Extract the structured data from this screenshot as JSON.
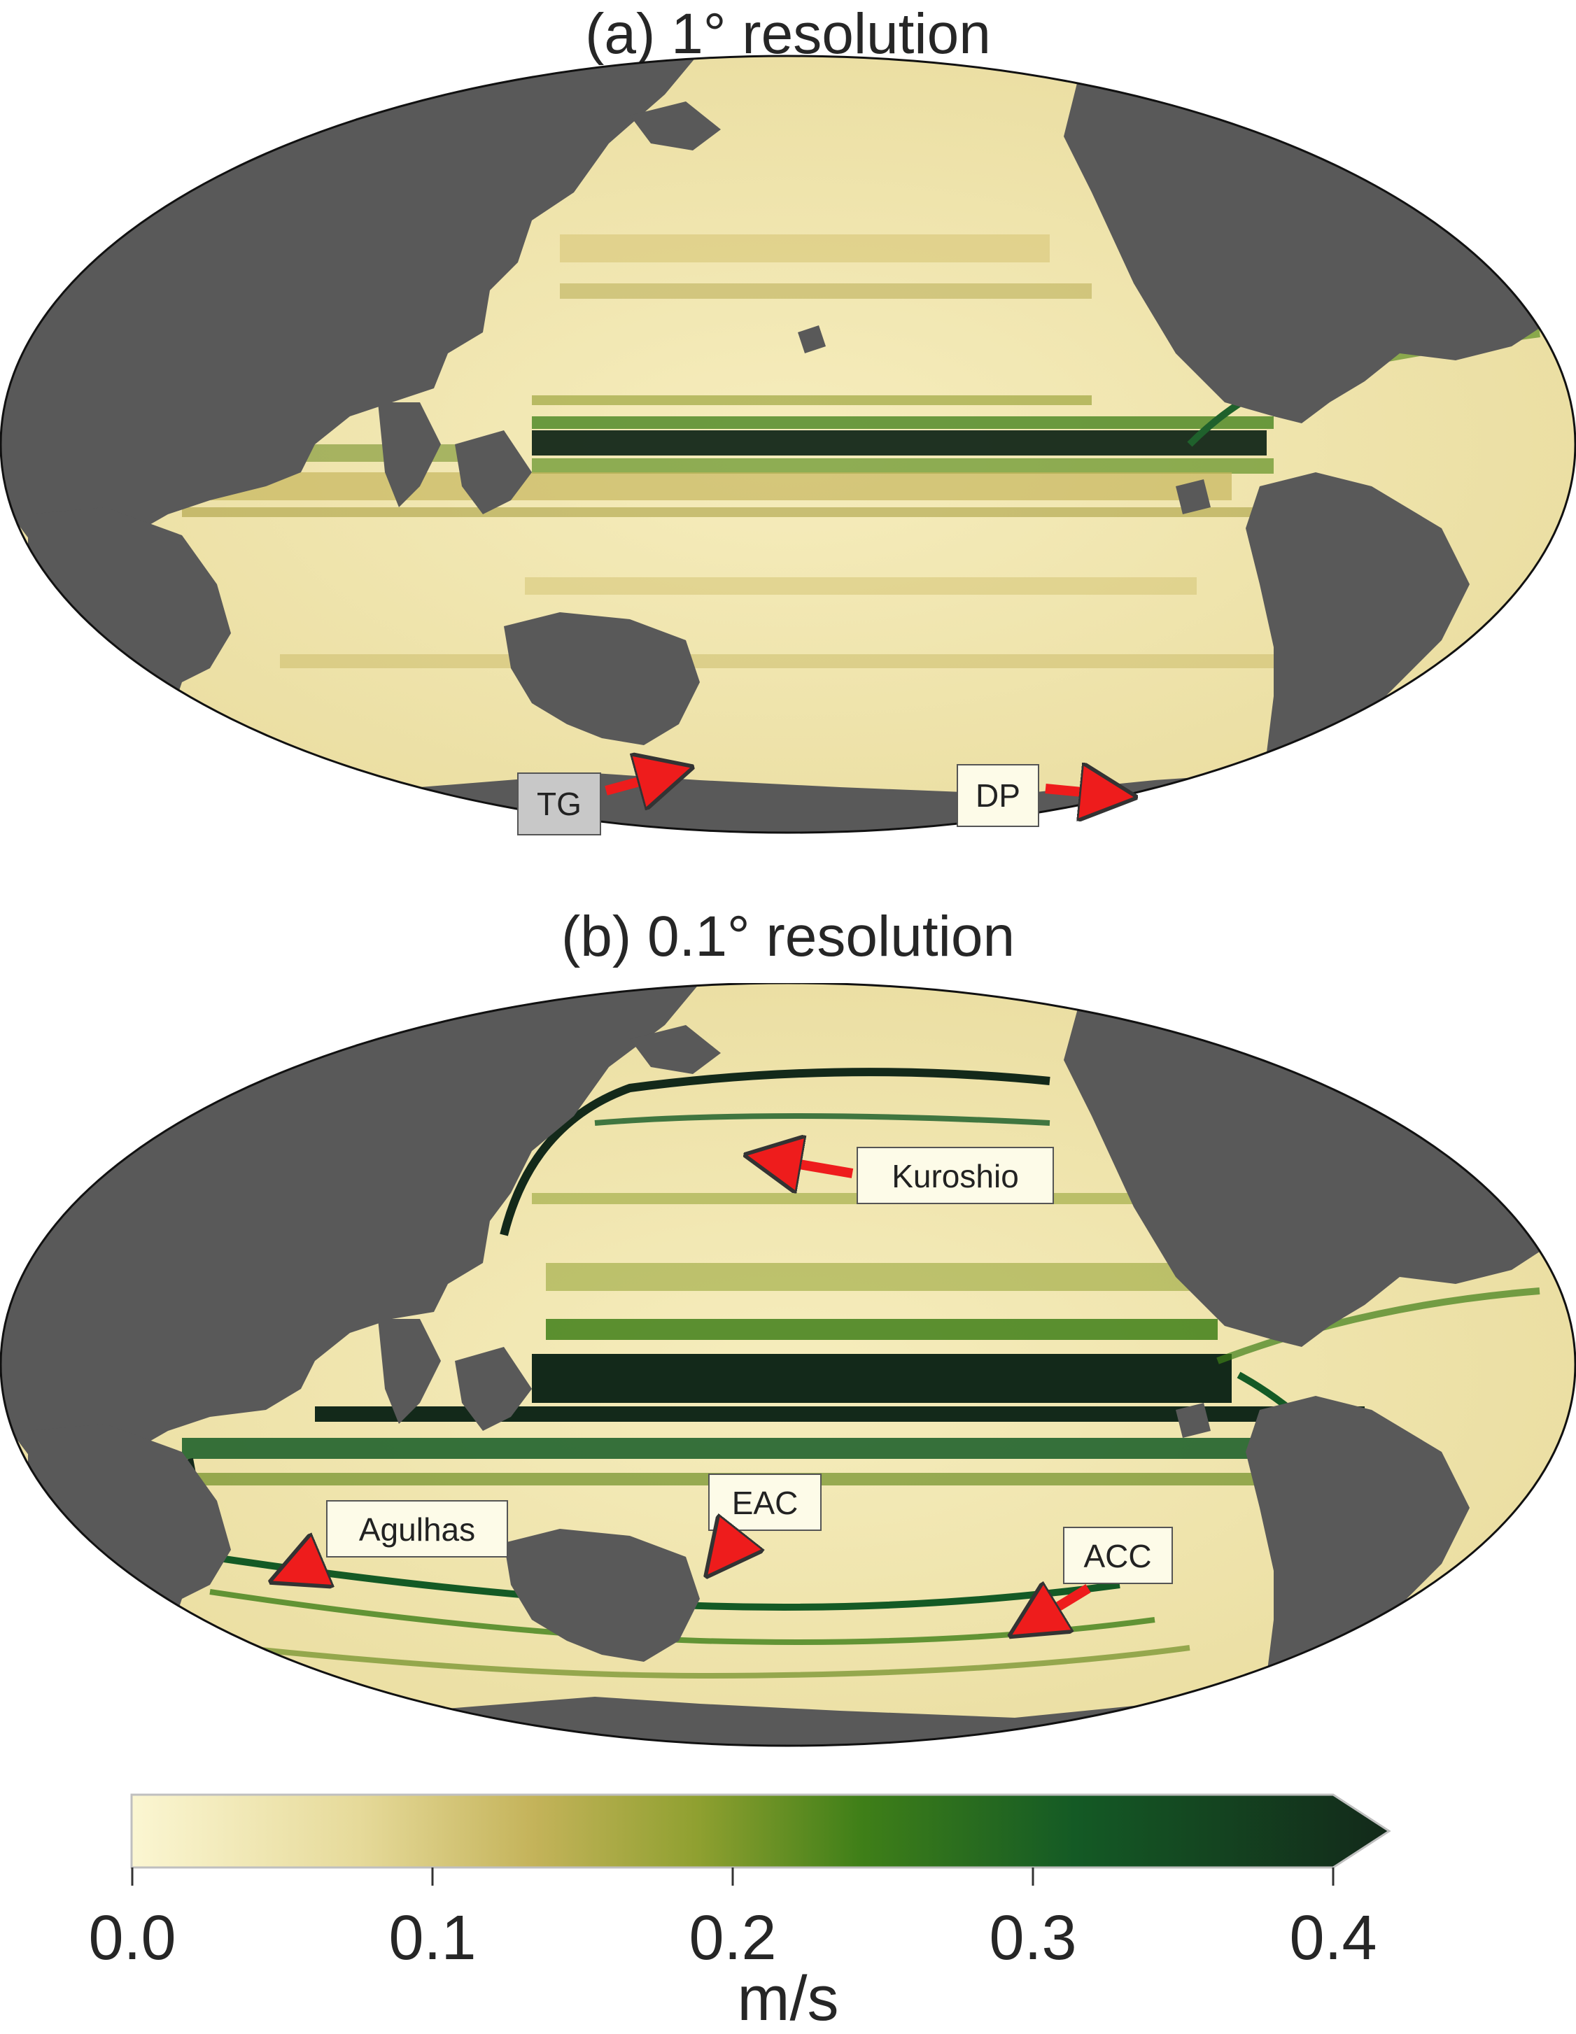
{
  "panels": [
    {
      "title": "(a) 1° resolution",
      "callouts": [
        {
          "label": "TG",
          "style": "grey"
        },
        {
          "label": "DP",
          "style": "light"
        }
      ]
    },
    {
      "title": "(b) 0.1° resolution",
      "callouts": [
        {
          "label": "Kuroshio",
          "style": "light"
        },
        {
          "label": "Agulhas",
          "style": "light"
        },
        {
          "label": "EAC",
          "style": "light"
        },
        {
          "label": "ACC",
          "style": "light"
        }
      ]
    }
  ],
  "colorbar": {
    "min": 0.0,
    "max": 0.4,
    "extend": "max",
    "ticks": [
      "0.0",
      "0.1",
      "0.2",
      "0.3",
      "0.4"
    ],
    "units": "m/s",
    "colors": [
      "#fbf6d2",
      "#e6da9a",
      "#c4b35a",
      "#8fa030",
      "#3f7f18",
      "#145a25",
      "#13291a"
    ]
  },
  "colors": {
    "land": "#595959",
    "ocean_low": "#f4eab6",
    "ocean_mid": "#c9b963",
    "ocean_high": "#0f2a14",
    "arrow": "#ee1c1c",
    "callout_light": "#fdfbe8",
    "callout_grey": "#c8c8c8"
  }
}
